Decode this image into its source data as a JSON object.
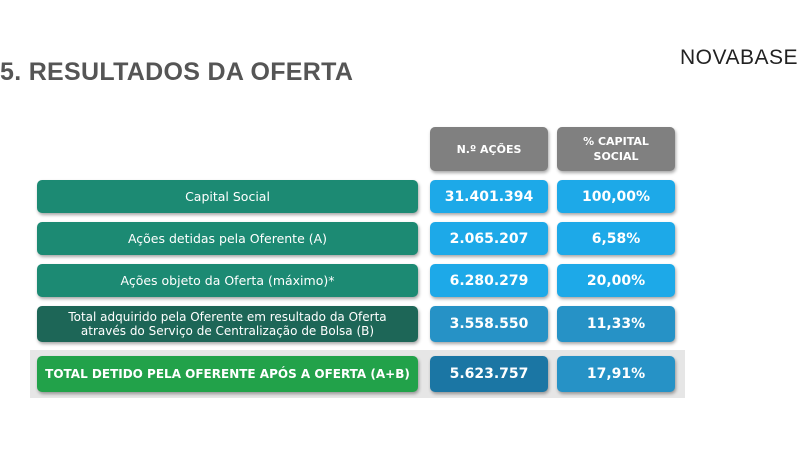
{
  "header": {
    "title": "5. RESULTADOS DA OFERTA",
    "logo": "NOVABASE"
  },
  "table": {
    "columns": [
      "N.º AÇÕES",
      "% CAPITAL SOCIAL"
    ],
    "rows": [
      {
        "label": "Capital Social",
        "acoes": "31.401.394",
        "capital": "100,00%"
      },
      {
        "label": "Ações detidas pela Oferente (A)",
        "acoes": "2.065.207",
        "capital": "6,58%"
      },
      {
        "label": "Ações objeto da Oferta (máximo)*",
        "acoes": "6.280.279",
        "capital": "20,00%"
      },
      {
        "label": "Total adquirido pela Oferente em resultado da Oferta através do Serviço de Centralização de Bolsa (B)",
        "acoes": "3.558.550",
        "capital": "11,33%"
      }
    ],
    "total": {
      "label": "TOTAL DETIDO PELA OFERENTE APÓS A OFERTA (A+B)",
      "acoes": "5.623.757",
      "capital": "17,91%"
    }
  },
  "colors": {
    "label_teal": "#1c8a73",
    "label_dark_teal": "#1d6657",
    "total_green": "#22a24a",
    "value_cyan": "#1da9e8",
    "value_blue": "#2692c6",
    "value_dark_blue": "#1b76a4",
    "header_gray": "#808080"
  }
}
